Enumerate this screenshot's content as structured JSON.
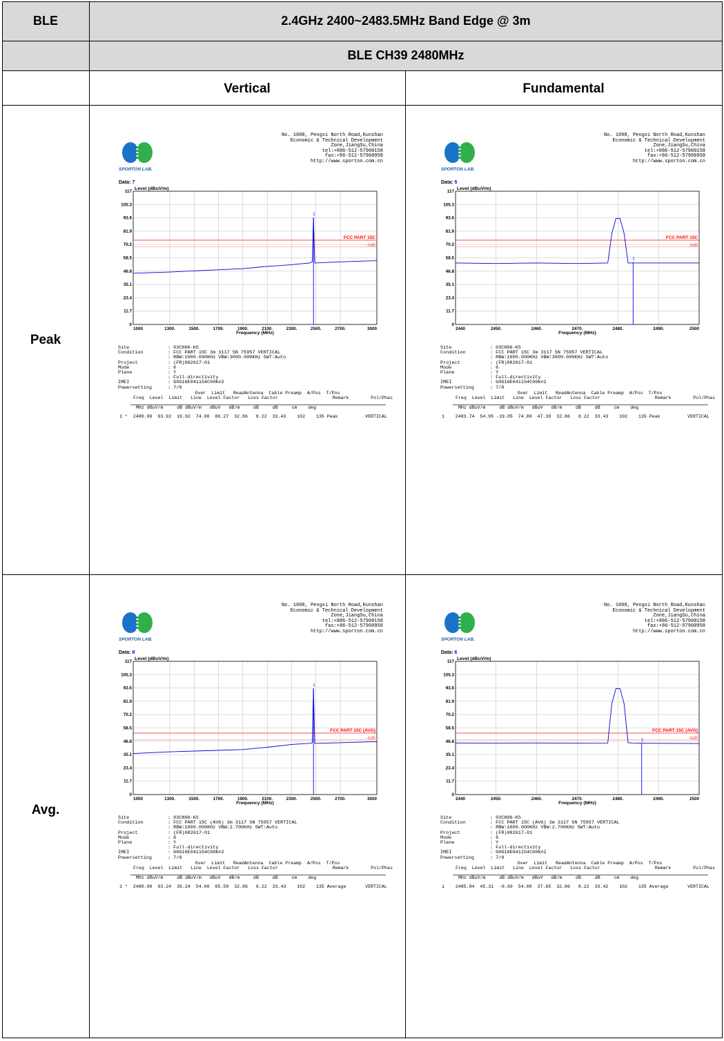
{
  "header": {
    "col1": "BLE",
    "title": "2.4GHz 2400~2483.5MHz Band Edge @ 3m",
    "subtitle": "BLE CH39 2480MHz",
    "col_left": "Vertical",
    "col_right": "Fundamental",
    "row_peak": "Peak",
    "row_avg": "Avg."
  },
  "address": [
    "No. 1098, Pengxi North Road,Kunshan",
    "Economic & Technical Development",
    "Zone,JiangSu,China",
    "tel:+886-512-57900158",
    "fax:+86-512-57900958",
    "http://www.sporton.com.cn"
  ],
  "logo_text": "SPORTON LAB.",
  "level_label": "Level (dBuV/m)",
  "freq_label": "Frequency (MHz)",
  "data_label": "Data:",
  "table_head1": "        Over  Limit   ReadAntenna  Cable Preamp  A/Pos  T/Pos",
  "table_head2": "Freq  Level  Limit   Line  Level Factor   Loss Factor                    Remark        Pol/Phas",
  "table_units": "  MHz dBuV/m     dB dBuV/m   dBuV   dB/m     dB     dB     cm    deg",
  "info_labels": [
    "Site",
    "Condition",
    "",
    "Project",
    "Mode",
    "Plane",
    "",
    "IMEI",
    "Powersetting"
  ],
  "reports": [
    {
      "data_no": "7",
      "limit_label": "FCC PART 15C",
      "limit_sub": "-6dB",
      "info_values": [
        ": 03CH06-KS",
        ": FCC PART 15C 3m 3117 SN 75957 VERTICAL",
        ": RBW:1000.000KHz VBW:3000.000KHz SWT:Auto",
        ": (FR)082617-01",
        ": 6",
        ": Y",
        ": Full-directivity",
        ": G0G16E041154C00K#2",
        ": 7/0"
      ],
      "row": "1 *  2480.00  93.92  19.92  74.00  86.27  32.86   8.22  33.43    102    135 Peak          VERTICAL",
      "chart_data": {
        "type": "line",
        "title": "",
        "xlabel": "Frequency (MHz)",
        "ylabel": "Level (dBuV/m)",
        "xlim": [
          1000,
          3000
        ],
        "ylim": [
          0,
          117
        ],
        "x_ticks": [
          "1000",
          "1300.",
          "1500.",
          "1700.",
          "1900.",
          "2100.",
          "2300.",
          "2500.",
          "2700.",
          "3000"
        ],
        "y_ticks": [
          "0",
          "11.7",
          "23.4",
          "35.1",
          "46.8",
          "58.5",
          "70.2",
          "81.9",
          "93.6",
          "105.3",
          "117"
        ],
        "limit_line": 74,
        "limit_line_6db": 68,
        "series": [
          {
            "x": [
              1000,
              1300,
              1600,
              1900,
              2100,
              2300,
              2450,
              2470,
              2480,
              2490,
              2500,
              2700,
              3000
            ],
            "y": [
              45,
              46,
              47.5,
              49,
              51,
              52.5,
              54,
              55,
              93.92,
              54,
              54,
              55,
              56
            ]
          }
        ],
        "marker": {
          "x": 2480,
          "y": 93.92,
          "label": "1"
        }
      }
    },
    {
      "data_no": "5",
      "limit_label": "FCC PART 15C",
      "limit_sub": "-6dB",
      "info_values": [
        ": 03CH06-KS",
        ": FCC PART 15C 3m 3117 SN 75957 VERTICAL",
        ": RBW:1000.000KHz VBW:3000.000KHz SWT:Auto",
        ": (FR)082617-01",
        ": 6",
        ": Y",
        ": Full-directivity",
        ": G0G16E041154C00K#2",
        ": 7/0"
      ],
      "row": "1    2483.74  54.95 -19.05  74.00  47.30  32.86   8.22  33.43    102    135 Peak          VERTICAL",
      "chart_data": {
        "type": "line",
        "title": "",
        "xlabel": "Frequency (MHz)",
        "ylabel": "Level (dBuV/m)",
        "xlim": [
          2440,
          2500
        ],
        "ylim": [
          0,
          117
        ],
        "x_ticks": [
          "2440",
          "2450.",
          "2460.",
          "2470.",
          "2480.",
          "2490.",
          "2500"
        ],
        "y_ticks": [
          "0",
          "11.7",
          "23.4",
          "35.1",
          "46.8",
          "58.5",
          "70.2",
          "81.9",
          "93.6",
          "105.3",
          "117"
        ],
        "limit_line": 74,
        "limit_line_6db": 68,
        "series": [
          {
            "x": [
              2440,
              2450,
              2460,
              2470,
              2477.5,
              2478.5,
              2479.5,
              2480.5,
              2481.5,
              2482.5,
              2483.5,
              2490,
              2500
            ],
            "y": [
              54,
              53.5,
              54,
              53.5,
              54,
              80,
              93,
              93,
              80,
              54,
              54,
              54,
              54
            ]
          }
        ],
        "marker": {
          "x": 2483.74,
          "y": 54.95,
          "label": "1"
        }
      }
    },
    {
      "data_no": "8",
      "limit_label": "FCC PART 15C (AVG)",
      "limit_sub": "-6dB",
      "info_values": [
        ": 03CH06-KS",
        ": FCC PART 15C (AVG) 3m 3117 SN 75957 VERTICAL",
        ": RBW:1000.000KHz VBW:2.700KHz SWT:Auto",
        ": (FR)082617-01",
        ": 6",
        ": Y",
        ": Full-directivity",
        ": G0G16E041154C00K#2",
        ": 7/0"
      ],
      "row": "1 *  2480.00  93.24  39.24  54.00  85.59  32.86   8.22  33.43    102    135 Average       VERTICAL",
      "chart_data": {
        "type": "line",
        "title": "",
        "xlabel": "Frequency (MHz)",
        "ylabel": "Level (dBuV/m)",
        "xlim": [
          1000,
          3000
        ],
        "ylim": [
          0,
          117
        ],
        "x_ticks": [
          "1000",
          "1300.",
          "1500.",
          "1700.",
          "1900.",
          "2100.",
          "2300.",
          "2500.",
          "2700.",
          "3000"
        ],
        "y_ticks": [
          "0",
          "11.7",
          "23.4",
          "35.1",
          "46.8",
          "58.5",
          "70.2",
          "81.9",
          "93.6",
          "105.3",
          "117"
        ],
        "limit_line": 54,
        "limit_line_6db": 48,
        "series": [
          {
            "x": [
              1000,
              1300,
              1600,
              1900,
              2100,
              2300,
              2450,
              2470,
              2480,
              2490,
              2500,
              2700,
              3000
            ],
            "y": [
              36,
              37.5,
              38.5,
              39.5,
              41.5,
              44,
              45,
              45.5,
              93.24,
              45,
              45,
              45.5,
              46.5
            ]
          }
        ],
        "marker": {
          "x": 2480,
          "y": 93.24,
          "label": "1"
        }
      }
    },
    {
      "data_no": "6",
      "limit_label": "FCC PART 15C (AVG)",
      "limit_sub": "-6dB",
      "info_values": [
        ": 03CH06-KS",
        ": FCC PART 15C (AVG) 3m 3117 SN 75957 VERTICAL",
        ": RBW:1000.000KHz VBW:2.700KHz SWT:Auto",
        ": (FR)082617-01",
        ": 6",
        ": Y",
        ": Full-directivity",
        ": G0G16E041154C00K#2",
        ": 7/0"
      ],
      "row": "1    2485.84  45.31  -8.69  54.00  37.65  32.86   8.22  33.42    102    135 Average       VERTICAL",
      "chart_data": {
        "type": "line",
        "title": "",
        "xlabel": "Frequency (MHz)",
        "ylabel": "Level (dBuV/m)",
        "xlim": [
          2440,
          2500
        ],
        "ylim": [
          0,
          117
        ],
        "x_ticks": [
          "2440",
          "2450.",
          "2460.",
          "2470.",
          "2480.",
          "2490.",
          "2500"
        ],
        "y_ticks": [
          "0",
          "11.7",
          "23.4",
          "35.1",
          "46.8",
          "58.5",
          "70.2",
          "81.9",
          "93.6",
          "105.3",
          "117"
        ],
        "limit_line": 54,
        "limit_line_6db": 48,
        "series": [
          {
            "x": [
              2440,
              2450,
              2460,
              2470,
              2477.5,
              2478.5,
              2479.5,
              2480.5,
              2481.5,
              2482.5,
              2483.5,
              2490,
              2500
            ],
            "y": [
              45.3,
              45.2,
              45.3,
              45.2,
              45.3,
              80,
              93,
              93,
              80,
              45.5,
              45.3,
              45,
              44.8
            ]
          }
        ],
        "marker": {
          "x": 2485.84,
          "y": 45.31,
          "label": "1"
        }
      }
    }
  ]
}
